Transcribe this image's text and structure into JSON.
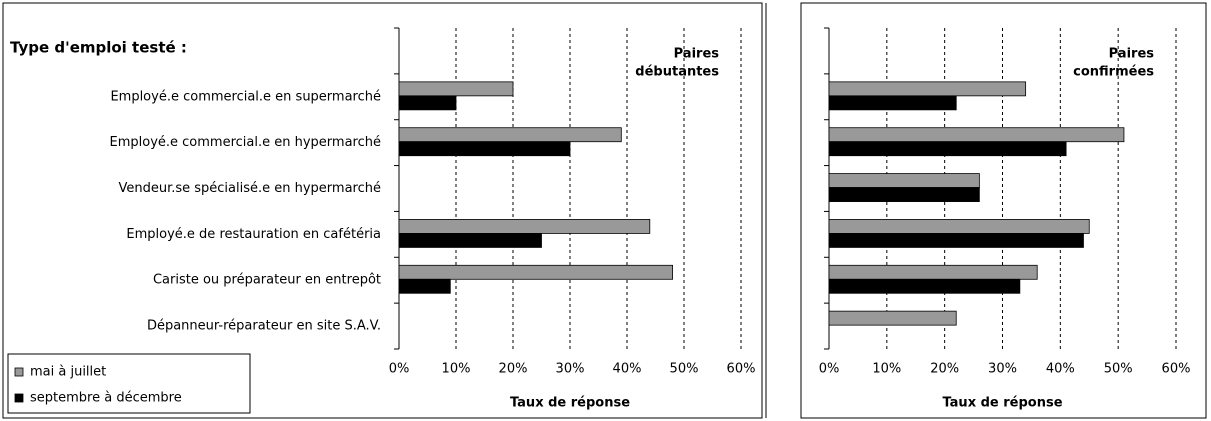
{
  "chart_data": [
    {
      "type": "bar",
      "orientation": "horizontal",
      "categories_title": "Type d'emploi testé :",
      "annotation": [
        "Paires",
        "débutantes"
      ],
      "categories": [
        "Employé.e commercial.e en supermarché",
        "Employé.e commercial.e en hypermarché",
        "Vendeur.se spécialisé.e en hypermarché",
        "Employé.e de restauration en cafétéria",
        "Cariste ou préparateur en entrepôt",
        "Dépanneur-réparateur en site S.A.V."
      ],
      "series": [
        {
          "name": "mai à juillet",
          "color": "#999999",
          "values": [
            20,
            39,
            null,
            44,
            48,
            null
          ]
        },
        {
          "name": "septembre à décembre",
          "color": "#000000",
          "values": [
            10,
            30,
            null,
            25,
            9,
            null
          ]
        }
      ],
      "xlabel": "Taux de réponse",
      "xlim": [
        0,
        60
      ],
      "xticks": [
        {
          "value": 0,
          "label": "0%"
        },
        {
          "value": 10,
          "label": "10%"
        },
        {
          "value": 20,
          "label": "20%"
        },
        {
          "value": 30,
          "label": "30%"
        },
        {
          "value": 40,
          "label": "40%"
        },
        {
          "value": 50,
          "label": "50%"
        },
        {
          "value": 60,
          "label": "60%"
        }
      ],
      "grid": true,
      "legend": "lower left"
    },
    {
      "type": "bar",
      "orientation": "horizontal",
      "annotation": [
        "Paires",
        "confirmées"
      ],
      "series": [
        {
          "color": "#999999",
          "values": [
            34,
            51,
            26,
            45,
            36,
            22
          ]
        },
        {
          "color": "#000000",
          "values": [
            22,
            41,
            26,
            44,
            33,
            null
          ]
        }
      ],
      "xlabel": "Taux de réponse",
      "xlim": [
        0,
        60
      ],
      "xticks": [
        {
          "value": 0,
          "label": "0%"
        },
        {
          "value": 10,
          "label": "10%"
        },
        {
          "value": 20,
          "label": "20%"
        },
        {
          "value": 30,
          "label": "30%"
        },
        {
          "value": 40,
          "label": "40%"
        },
        {
          "value": 50,
          "label": "50%"
        },
        {
          "value": 60,
          "label": "60%"
        }
      ],
      "grid": true
    }
  ]
}
